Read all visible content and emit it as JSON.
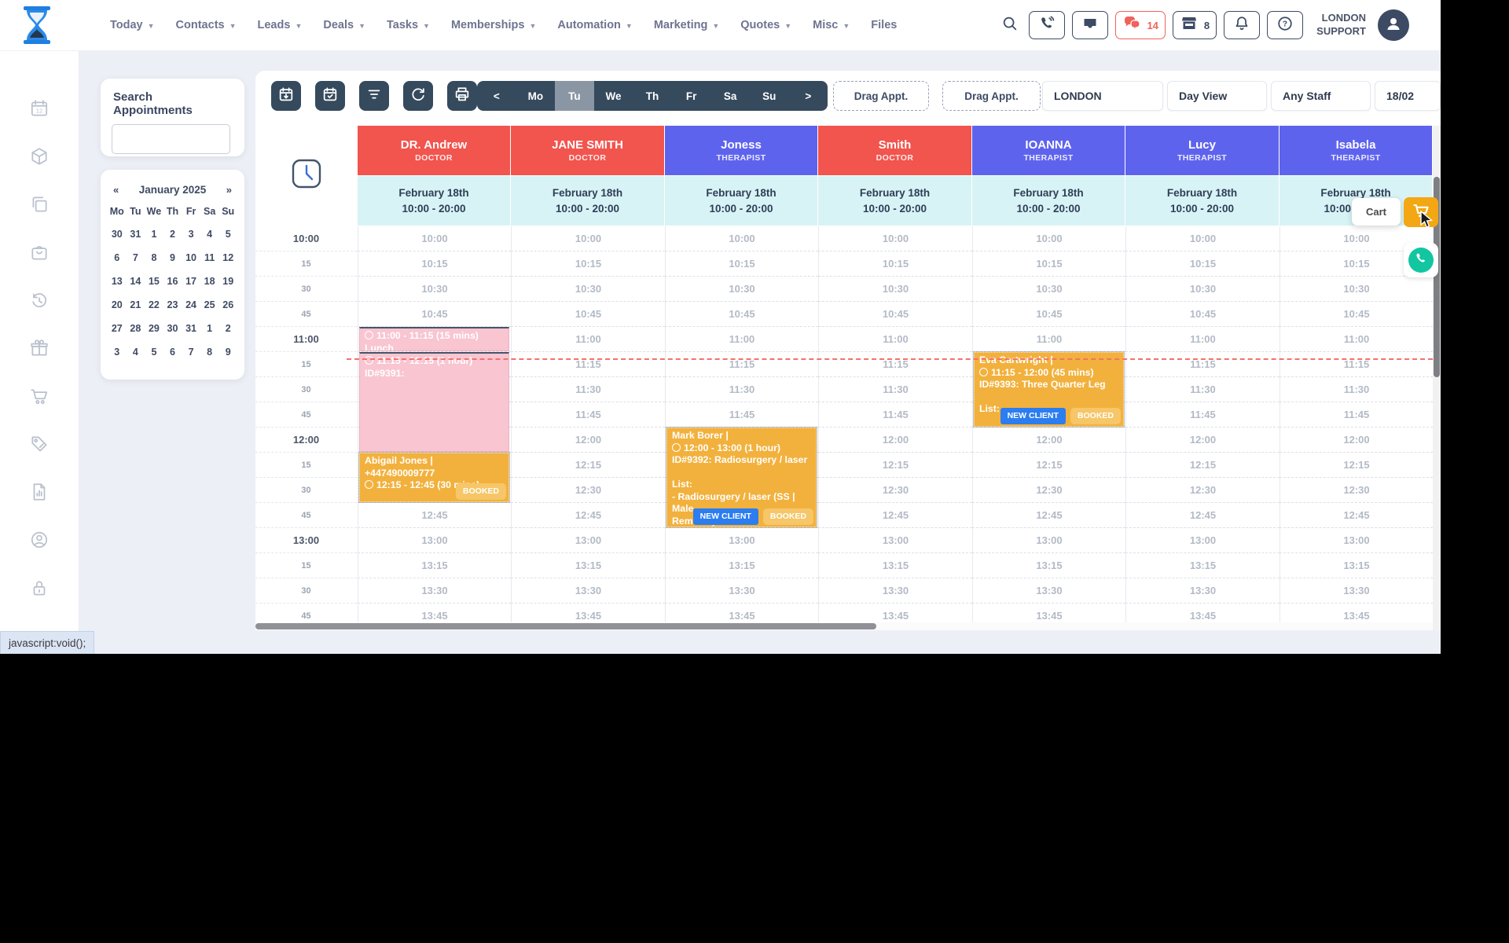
{
  "nav": {
    "items": [
      {
        "label": "Today",
        "chevron": true
      },
      {
        "label": "Contacts",
        "chevron": true
      },
      {
        "label": "Leads",
        "chevron": true
      },
      {
        "label": "Deals",
        "chevron": true
      },
      {
        "label": "Tasks",
        "chevron": true
      },
      {
        "label": "Memberships",
        "chevron": true
      },
      {
        "label": "Automation",
        "chevron": true
      },
      {
        "label": "Marketing",
        "chevron": true
      },
      {
        "label": "Quotes",
        "chevron": true
      },
      {
        "label": "Misc",
        "chevron": true
      },
      {
        "label": "Files",
        "chevron": false
      }
    ]
  },
  "topbar": {
    "chat_count": "14",
    "store_count": "8",
    "account": {
      "line1": "LONDON",
      "line2": "SUPPORT"
    }
  },
  "sidebar": {
    "icons": [
      "calendar-12-icon",
      "package-icon",
      "copy-icon",
      "apron-icon",
      "history-icon",
      "gift-icon",
      "cart-icon",
      "tag-icon",
      "report-icon",
      "user-circle-icon",
      "lock-icon"
    ]
  },
  "search_panel": {
    "title": "Search Appointments",
    "input_value": ""
  },
  "mini_calendar": {
    "prev": "«",
    "next": "»",
    "title": "January 2025",
    "weekdays": [
      "Mo",
      "Tu",
      "We",
      "Th",
      "Fr",
      "Sa",
      "Su"
    ],
    "weeks": [
      [
        "30",
        "31",
        "1",
        "2",
        "3",
        "4",
        "5"
      ],
      [
        "6",
        "7",
        "8",
        "9",
        "10",
        "11",
        "12"
      ],
      [
        "13",
        "14",
        "15",
        "16",
        "17",
        "18",
        "19"
      ],
      [
        "20",
        "21",
        "22",
        "23",
        "24",
        "25",
        "26"
      ],
      [
        "27",
        "28",
        "29",
        "30",
        "31",
        "1",
        "2"
      ],
      [
        "3",
        "4",
        "5",
        "6",
        "7",
        "8",
        "9"
      ]
    ]
  },
  "toolbar": {
    "week": {
      "prev": "<",
      "next": ">",
      "days": [
        "Mo",
        "Tu",
        "We",
        "Th",
        "Fr",
        "Sa",
        "Su"
      ],
      "active": "Tu"
    },
    "drag1": "Drag Appt.",
    "drag2": "Drag Appt.",
    "location": "LONDON",
    "view": "Day View",
    "staff": "Any Staff",
    "date": "18/02"
  },
  "calendar": {
    "columns": [
      {
        "name": "DR. Andrew",
        "role": "DOCTOR",
        "color": "red",
        "date": "February 18th",
        "hours": "10:00 - 20:00"
      },
      {
        "name": "JANE SMITH",
        "role": "DOCTOR",
        "color": "red",
        "date": "February 18th",
        "hours": "10:00 - 20:00"
      },
      {
        "name": "Joness",
        "role": "THERAPIST",
        "color": "purple",
        "date": "February 18th",
        "hours": "10:00 - 20:00"
      },
      {
        "name": "Smith",
        "role": "DOCTOR",
        "color": "red",
        "date": "February 18th",
        "hours": "10:00 - 20:00"
      },
      {
        "name": "IOANNA",
        "role": "THERAPIST",
        "color": "purple",
        "date": "February 18th",
        "hours": "10:00 - 20:00"
      },
      {
        "name": "Lucy",
        "role": "THERAPIST",
        "color": "purple",
        "date": "February 18th",
        "hours": "10:00 - 20:00"
      },
      {
        "name": "Isabela",
        "role": "THERAPIST",
        "color": "purple",
        "date": "February 18th",
        "hours": "10:00 - 20:00"
      }
    ],
    "time_rows": [
      {
        "g": "10:00",
        "t": "10:00",
        "h": true
      },
      {
        "g": "15",
        "t": "10:15",
        "h": false
      },
      {
        "g": "30",
        "t": "10:30",
        "h": false
      },
      {
        "g": "45",
        "t": "10:45",
        "h": false
      },
      {
        "g": "11:00",
        "t": "11:00",
        "h": true
      },
      {
        "g": "15",
        "t": "11:15",
        "h": false
      },
      {
        "g": "30",
        "t": "11:30",
        "h": false
      },
      {
        "g": "45",
        "t": "11:45",
        "h": false
      },
      {
        "g": "12:00",
        "t": "12:00",
        "h": true
      },
      {
        "g": "15",
        "t": "12:15",
        "h": false
      },
      {
        "g": "30",
        "t": "12:30",
        "h": false
      },
      {
        "g": "45",
        "t": "12:45",
        "h": false
      },
      {
        "g": "13:00",
        "t": "13:00",
        "h": true
      },
      {
        "g": "15",
        "t": "13:15",
        "h": false
      },
      {
        "g": "30",
        "t": "13:30",
        "h": false
      },
      {
        "g": "45",
        "t": "13:45",
        "h": false
      }
    ],
    "events": [
      {
        "col": 0,
        "row": 4,
        "span": 1,
        "type": "pink",
        "lines": [
          {
            "clock": true,
            "text": "11:00 - 11:15 (15 mins)"
          },
          {
            "clock": false,
            "text": "Lunch"
          }
        ],
        "badges": []
      },
      {
        "col": 0,
        "row": 5,
        "span": 4,
        "type": "pink",
        "lines": [
          {
            "clock": true,
            "text": "11:15 - 12:15 (1 hour)"
          },
          {
            "clock": false,
            "text": "ID#9391:"
          }
        ],
        "badges": []
      },
      {
        "col": 0,
        "row": 9,
        "span": 2,
        "type": "orange",
        "lines": [
          {
            "clock": false,
            "text": "Abigail Jones |"
          },
          {
            "clock": false,
            "text": "+447490009777"
          },
          {
            "clock": true,
            "text": "12:15 - 12:45 (30 mins)"
          }
        ],
        "badges": [
          "BOOKED"
        ]
      },
      {
        "col": 2,
        "row": 8,
        "span": 4,
        "type": "orange",
        "lines": [
          {
            "clock": false,
            "text": "Mark Borer |"
          },
          {
            "clock": true,
            "text": "12:00 - 13:00 (1 hour)"
          },
          {
            "clock": false,
            "text": "ID#9392: Radiosurgery / laser"
          },
          {
            "clock": false,
            "text": ""
          },
          {
            "clock": false,
            "text": "List:"
          },
          {
            "clock": false,
            "text": "- Radiosurgery / laser (SS | Male"
          },
          {
            "clock": false,
            "text": "Removal)"
          }
        ],
        "badges": [
          "NEW CLIENT",
          "BOOKED"
        ]
      },
      {
        "col": 4,
        "row": 5,
        "span": 3,
        "type": "orange",
        "lines": [
          {
            "clock": false,
            "text": "Eva Cartwright |"
          },
          {
            "clock": true,
            "text": "11:15 - 12:00 (45 mins)"
          },
          {
            "clock": false,
            "text": "ID#9393: Three Quarter Leg"
          },
          {
            "clock": false,
            "text": ""
          },
          {
            "clock": false,
            "text": "List:"
          }
        ],
        "badges": [
          "NEW CLIENT",
          "BOOKED"
        ]
      }
    ],
    "current_time_row": 5
  },
  "floating": {
    "cart_tooltip": "Cart"
  },
  "statusbar": {
    "text": "javascript:void();"
  },
  "colors": {
    "doctor_red": "#f2544e",
    "therapist_purple": "#5e63ee",
    "subheader_cyan": "#d8f3f5",
    "event_orange": "#f2b13d",
    "event_pink": "#f8c5d1",
    "booked_badge": "#f6c668",
    "new_client_badge": "#2b7df0",
    "navy": "#3c4b63",
    "cart_orange": "#f3a712",
    "whatsapp_teal": "#13c6a2"
  }
}
